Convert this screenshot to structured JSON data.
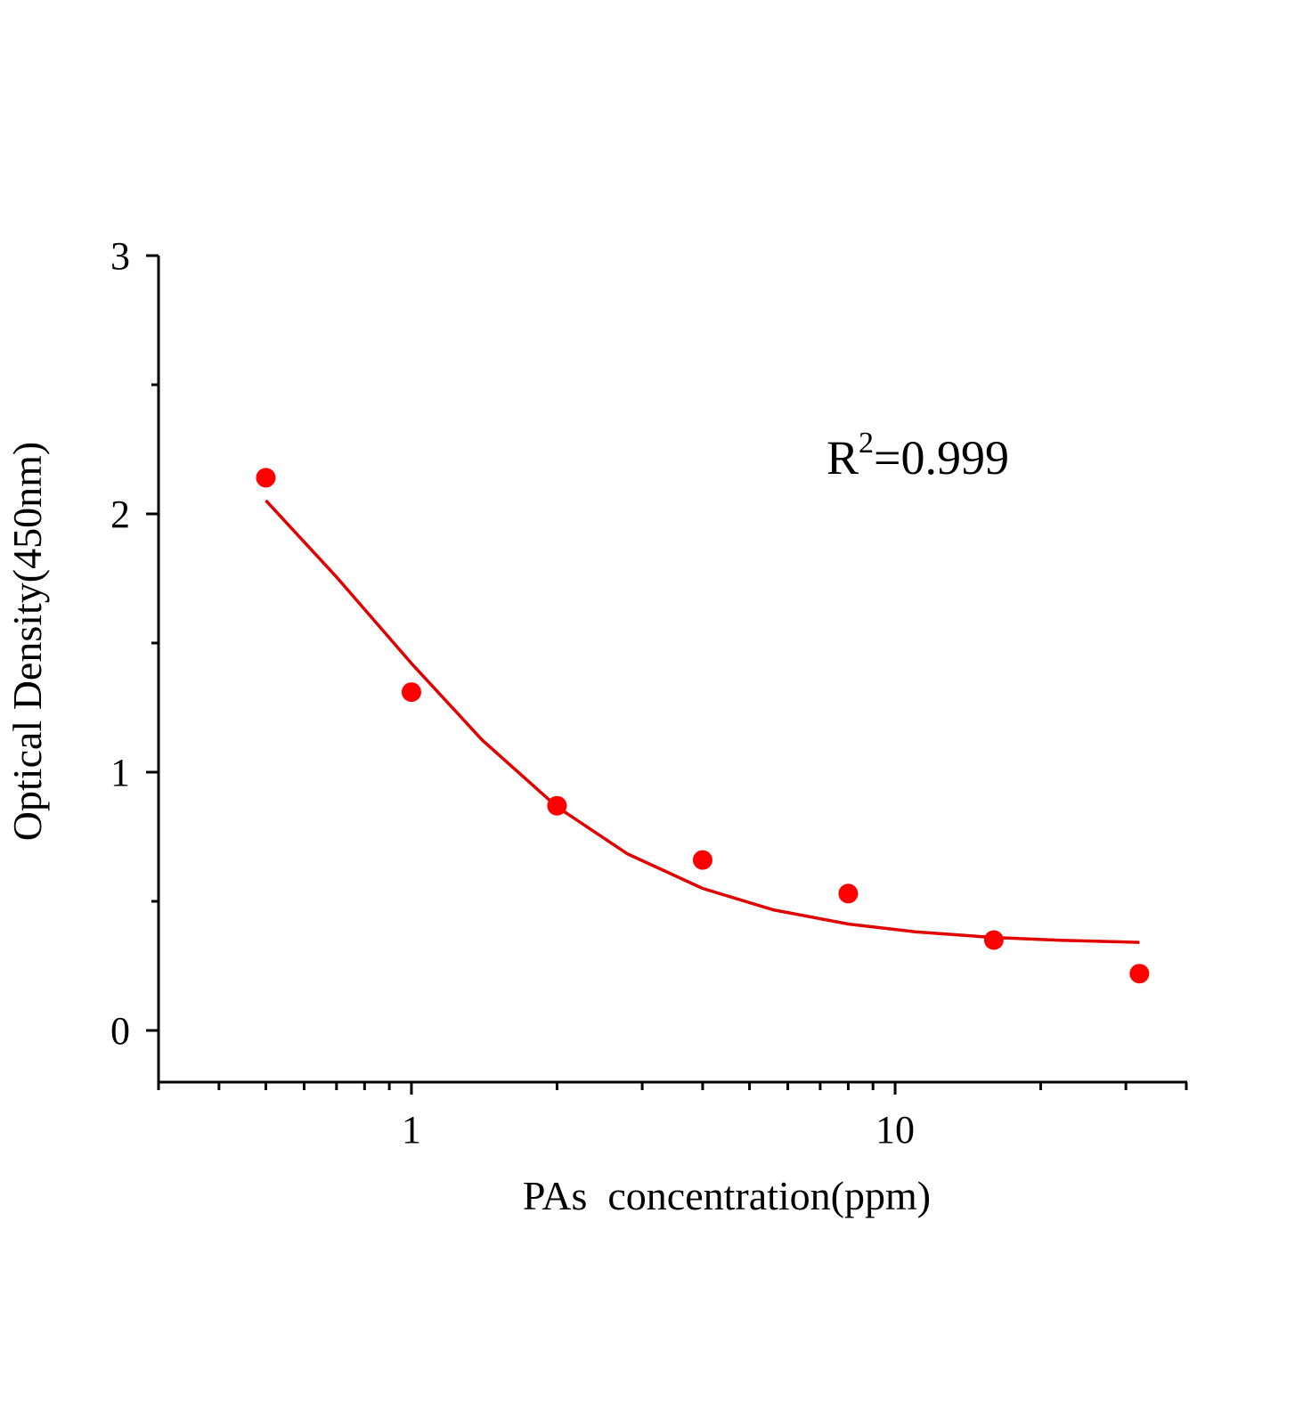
{
  "chart_data": {
    "type": "scatter",
    "title": "",
    "xlabel": "PAs  concentration(ppm)",
    "ylabel": "Optical Density(450nm)",
    "x_scale": "log",
    "xlim": [
      0.3,
      40
    ],
    "ylim": [
      -0.2,
      3
    ],
    "x_ticks": [
      1,
      10
    ],
    "x_tick_labels": [
      "1",
      "10"
    ],
    "y_ticks": [
      0,
      1,
      2,
      3
    ],
    "y_tick_labels": [
      "0",
      "1",
      "2",
      "3"
    ],
    "y_minor_step": 0.5,
    "grid": false,
    "annotation": {
      "base": "R",
      "sup": "2",
      "rest": "=0.999"
    },
    "colors": {
      "points": "#ff0000",
      "curve": "#e00000",
      "axis": "#000000"
    },
    "points": {
      "x": [
        0.5,
        1,
        2,
        4,
        8,
        16,
        32
      ],
      "y": [
        2.14,
        1.31,
        0.87,
        0.66,
        0.53,
        0.35,
        0.22
      ]
    },
    "fit_curve": {
      "x": [
        0.5,
        0.7,
        1,
        1.4,
        2,
        2.8,
        4,
        5.6,
        8,
        11,
        16,
        22,
        32
      ],
      "y": [
        2.052,
        1.756,
        1.421,
        1.125,
        0.866,
        0.683,
        0.55,
        0.467,
        0.412,
        0.382,
        0.36,
        0.349,
        0.341
      ]
    }
  }
}
